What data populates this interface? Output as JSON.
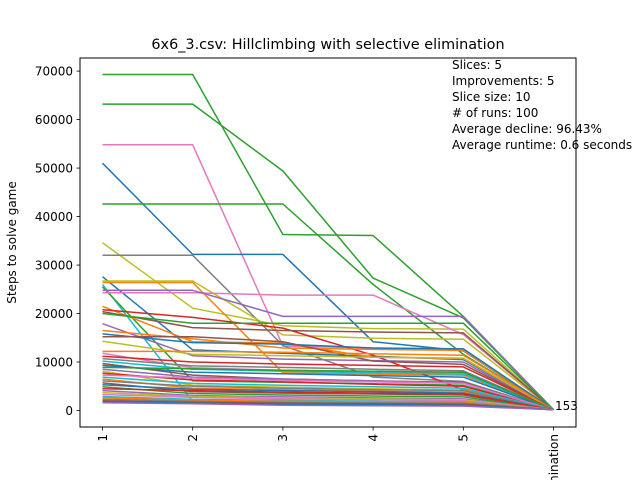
{
  "chart_data": {
    "type": "line",
    "title": "6x6_3.csv: Hillclimbing with selective elimination",
    "xlabel": "",
    "ylabel": "Steps to solve game",
    "categories": [
      "1",
      "2",
      "3",
      "4",
      "5",
      "elimination"
    ],
    "ylim": [
      -3400,
      72700
    ],
    "yticks": [
      0,
      10000,
      20000,
      30000,
      40000,
      50000,
      60000,
      70000
    ],
    "ytick_labels": [
      "0",
      "10000",
      "20000",
      "30000",
      "40000",
      "50000",
      "60000",
      "70000"
    ],
    "grid": false,
    "annotations": {
      "end_label": "153",
      "stats": [
        "Slices: 5",
        "Improvements: 5",
        "Slice size: 10",
        "# of runs: 100",
        "Average decline: 96.43%",
        "Average runtime: 0.6 seconds"
      ]
    },
    "series": [
      {
        "color": "#2ca02c",
        "values": [
          69300,
          69300,
          36300,
          36100,
          19400,
          153
        ]
      },
      {
        "color": "#2ca02c",
        "values": [
          63200,
          63200,
          49400,
          27300,
          19100,
          153
        ]
      },
      {
        "color": "#e377c2",
        "values": [
          54800,
          54800,
          13300,
          12900,
          12700,
          153
        ]
      },
      {
        "color": "#1f77b4",
        "values": [
          51000,
          32200,
          32200,
          14200,
          12300,
          153
        ]
      },
      {
        "color": "#2ca02c",
        "values": [
          42600,
          42600,
          42600,
          26000,
          11600,
          153
        ]
      },
      {
        "color": "#bcbd22",
        "values": [
          34600,
          21100,
          17500,
          16900,
          16800,
          153
        ]
      },
      {
        "color": "#7f7f7f",
        "values": [
          32000,
          32000,
          13400,
          6900,
          6000,
          153
        ]
      },
      {
        "color": "#1f77b4",
        "values": [
          27600,
          12500,
          11800,
          11200,
          10500,
          153
        ]
      },
      {
        "color": "#bcbd22",
        "values": [
          26700,
          26700,
          15600,
          14900,
          14700,
          153
        ]
      },
      {
        "color": "#ff7f0e",
        "values": [
          26400,
          26400,
          7800,
          7500,
          7300,
          153
        ]
      },
      {
        "color": "#17becf",
        "values": [
          26000,
          1900,
          1700,
          1600,
          1500,
          153
        ]
      },
      {
        "color": "#2ca02c",
        "values": [
          25500,
          6100,
          5800,
          5500,
          5200,
          153
        ]
      },
      {
        "color": "#e377c2",
        "values": [
          24300,
          24300,
          23800,
          23800,
          15700,
          153
        ]
      },
      {
        "color": "#9467bd",
        "values": [
          24800,
          24800,
          19400,
          19400,
          19400,
          153
        ]
      },
      {
        "color": "#ff7f0e",
        "values": [
          21500,
          14200,
          13900,
          11000,
          10700,
          153
        ]
      },
      {
        "color": "#d62728",
        "values": [
          20800,
          19200,
          17000,
          11400,
          4300,
          153
        ]
      },
      {
        "color": "#8c564b",
        "values": [
          20400,
          17100,
          16500,
          16200,
          16000,
          153
        ]
      },
      {
        "color": "#2ca02c",
        "values": [
          20000,
          18000,
          18000,
          18000,
          18000,
          153
        ]
      },
      {
        "color": "#9467bd",
        "values": [
          17900,
          11300,
          10600,
          10300,
          10000,
          153
        ]
      },
      {
        "color": "#ff7f0e",
        "values": [
          16500,
          14800,
          12900,
          12600,
          12400,
          153
        ]
      },
      {
        "color": "#1f77b4",
        "values": [
          15800,
          14000,
          13700,
          12900,
          12700,
          153
        ]
      },
      {
        "color": "#8c564b",
        "values": [
          15200,
          15200,
          14200,
          10200,
          9500,
          153
        ]
      },
      {
        "color": "#bcbd22",
        "values": [
          14300,
          11600,
          11300,
          11000,
          10800,
          153
        ]
      },
      {
        "color": "#ff7f0e",
        "values": [
          12200,
          12200,
          12000,
          11700,
          11400,
          153
        ]
      },
      {
        "color": "#e377c2",
        "values": [
          11800,
          8800,
          8300,
          8000,
          7800,
          153
        ]
      },
      {
        "color": "#d62728",
        "values": [
          11200,
          10000,
          9600,
          9300,
          9000,
          153
        ]
      },
      {
        "color": "#7f7f7f",
        "values": [
          10700,
          9200,
          8900,
          8500,
          8200,
          153
        ]
      },
      {
        "color": "#17becf",
        "values": [
          10200,
          8500,
          8100,
          7800,
          7500,
          153
        ]
      },
      {
        "color": "#8c564b",
        "values": [
          9700,
          7300,
          6500,
          6100,
          5800,
          153
        ]
      },
      {
        "color": "#1f77b4",
        "values": [
          9300,
          7900,
          7600,
          7200,
          6900,
          153
        ]
      },
      {
        "color": "#2ca02c",
        "values": [
          8900,
          8600,
          8300,
          8100,
          7900,
          153
        ]
      },
      {
        "color": "#9467bd",
        "values": [
          8500,
          6900,
          6500,
          6100,
          5700,
          153
        ]
      },
      {
        "color": "#bcbd22",
        "values": [
          8100,
          5200,
          4800,
          4500,
          4200,
          153
        ]
      },
      {
        "color": "#d62728",
        "values": [
          7700,
          6300,
          5900,
          5400,
          5000,
          153
        ]
      },
      {
        "color": "#e377c2",
        "values": [
          7300,
          6700,
          6200,
          5900,
          5600,
          153
        ]
      },
      {
        "color": "#17becf",
        "values": [
          6900,
          5600,
          5200,
          4900,
          4600,
          153
        ]
      },
      {
        "color": "#ff7f0e",
        "values": [
          6500,
          4600,
          4300,
          4000,
          3800,
          153
        ]
      },
      {
        "color": "#7f7f7f",
        "values": [
          6100,
          5000,
          4600,
          4300,
          4100,
          153
        ]
      },
      {
        "color": "#8c564b",
        "values": [
          5700,
          3900,
          3600,
          3400,
          3200,
          153
        ]
      },
      {
        "color": "#1f77b4",
        "values": [
          5300,
          4400,
          4100,
          3900,
          3600,
          153
        ]
      },
      {
        "color": "#2ca02c",
        "values": [
          4900,
          3500,
          3200,
          3000,
          2800,
          153
        ]
      },
      {
        "color": "#d62728",
        "values": [
          4500,
          4100,
          3800,
          3600,
          3400,
          153
        ]
      },
      {
        "color": "#9467bd",
        "values": [
          4100,
          3100,
          2800,
          2600,
          2400,
          153
        ]
      },
      {
        "color": "#bcbd22",
        "values": [
          3700,
          2900,
          2600,
          2400,
          2200,
          153
        ]
      },
      {
        "color": "#e377c2",
        "values": [
          3300,
          2700,
          2400,
          2200,
          2000,
          153
        ]
      },
      {
        "color": "#17becf",
        "values": [
          2900,
          2300,
          2100,
          1900,
          1800,
          153
        ]
      },
      {
        "color": "#ff7f0e",
        "values": [
          2600,
          2100,
          1900,
          1800,
          1700,
          153
        ]
      },
      {
        "color": "#7f7f7f",
        "values": [
          2300,
          1900,
          1700,
          1600,
          1500,
          153
        ]
      },
      {
        "color": "#8c564b",
        "values": [
          2000,
          1700,
          1500,
          1400,
          1300,
          153
        ]
      },
      {
        "color": "#1f77b4",
        "values": [
          1800,
          1500,
          1300,
          1200,
          1100,
          153
        ]
      },
      {
        "color": "#9467bd",
        "values": [
          1600,
          1400,
          1100,
          1000,
          900,
          153
        ]
      }
    ]
  }
}
